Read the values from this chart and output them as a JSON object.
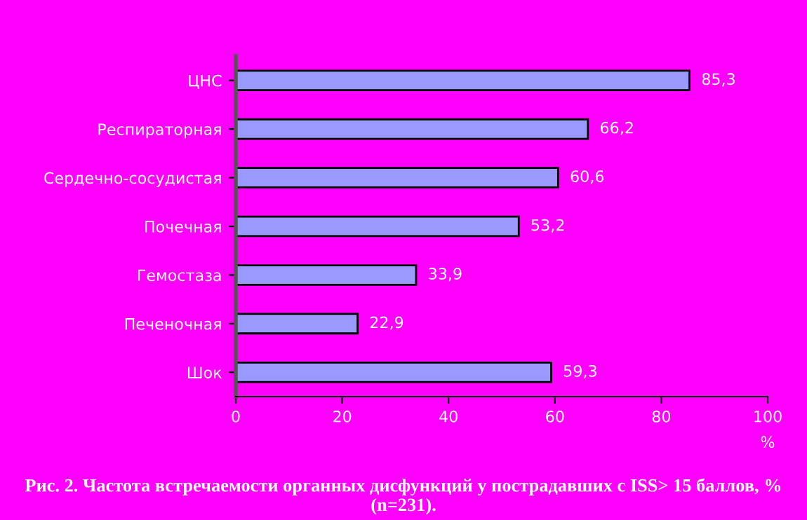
{
  "chart_data": {
    "type": "bar",
    "orientation": "horizontal",
    "categories": [
      "ЦНС",
      "Респираторная",
      "Сердечно-сосудистая",
      "Почечная",
      "Гемостаза",
      "Печеночная",
      "Шок"
    ],
    "values": [
      85.3,
      66.2,
      60.6,
      53.2,
      33.9,
      22.9,
      59.3
    ],
    "value_labels": [
      "85,3",
      "66,2",
      "60,6",
      "53,2",
      "33,9",
      "22,9",
      "59,3"
    ],
    "color": "#9999ff",
    "xlim": [
      0,
      100
    ],
    "xticks": [
      0,
      20,
      40,
      60,
      80,
      100
    ],
    "xlabel": "%",
    "grid": false,
    "legend": false,
    "annotations": [
      "Рис. 2. Частота встречаемости органных дисфункций у пострадавших с ISS> 15 баллов, % (n=231)."
    ]
  }
}
